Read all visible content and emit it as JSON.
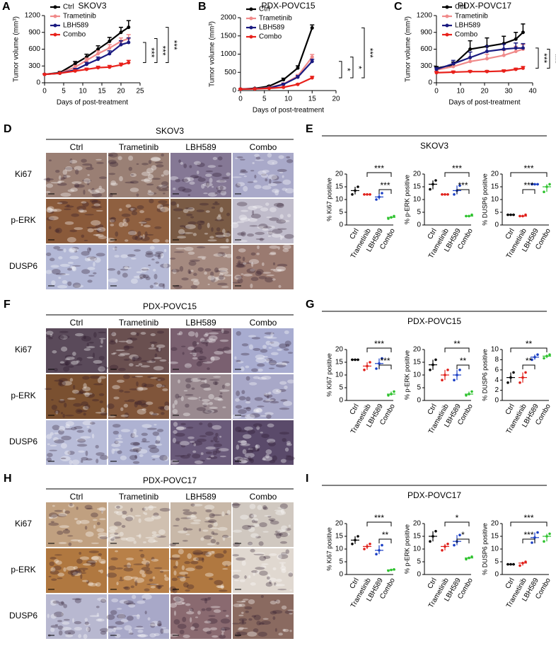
{
  "chart_data": [
    {
      "type": "line",
      "label": "A",
      "title": "SKOV3",
      "x_label": "Days of post-treatment",
      "y_label": "Tumor volume (mm³)",
      "x": [
        0,
        4,
        8,
        11,
        14,
        17,
        20,
        22
      ],
      "xlim": [
        0,
        25
      ],
      "xticks": [
        0,
        5,
        10,
        15,
        20,
        25
      ],
      "ylim": [
        0,
        1200
      ],
      "yticks": [
        0,
        300,
        600,
        900,
        1200
      ],
      "series": [
        {
          "name": "Ctrl",
          "color": "#000000",
          "values": [
            150,
            180,
            340,
            460,
            600,
            740,
            900,
            990
          ],
          "errors": [
            10,
            20,
            40,
            50,
            60,
            70,
            90,
            120
          ]
        },
        {
          "name": "Trametinib",
          "color": "#f08a8a",
          "values": [
            150,
            170,
            280,
            400,
            520,
            620,
            740,
            790
          ],
          "errors": [
            10,
            15,
            30,
            40,
            50,
            60,
            60,
            70
          ]
        },
        {
          "name": "LBH589",
          "color": "#1a1a80",
          "values": [
            150,
            170,
            230,
            330,
            420,
            520,
            680,
            720
          ],
          "errors": [
            10,
            15,
            25,
            35,
            40,
            50,
            70,
            80
          ]
        },
        {
          "name": "Combo",
          "color": "#e8211b",
          "values": [
            150,
            170,
            210,
            240,
            270,
            280,
            320,
            360
          ],
          "errors": [
            10,
            10,
            20,
            20,
            25,
            30,
            30,
            40
          ]
        }
      ],
      "significance": [
        "***",
        "***",
        "***"
      ]
    },
    {
      "type": "line",
      "label": "B",
      "title": "PDX-POVC15",
      "x_label": "Days of post-treatment",
      "y_label": "Tumor volume (mm³)",
      "x": [
        0,
        3,
        6,
        9,
        12,
        15
      ],
      "xlim": [
        0,
        20
      ],
      "xticks": [
        0,
        5,
        10,
        15,
        20
      ],
      "ylim": [
        0,
        2000
      ],
      "yticks": [
        0,
        500,
        1000,
        1500,
        2000
      ],
      "series": [
        {
          "name": "Ctrl",
          "color": "#000000",
          "values": [
            40,
            60,
            120,
            300,
            620,
            1720
          ],
          "errors": [
            10,
            10,
            20,
            40,
            60,
            80
          ]
        },
        {
          "name": "Trametinib",
          "color": "#f08a8a",
          "values": [
            40,
            50,
            80,
            180,
            400,
            920
          ],
          "errors": [
            10,
            10,
            15,
            30,
            40,
            70
          ]
        },
        {
          "name": "LBH589",
          "color": "#1a1a80",
          "values": [
            40,
            50,
            70,
            170,
            370,
            800
          ],
          "errors": [
            10,
            10,
            15,
            30,
            40,
            60
          ]
        },
        {
          "name": "Combo",
          "color": "#e8211b",
          "values": [
            40,
            45,
            60,
            90,
            170,
            350
          ],
          "errors": [
            5,
            5,
            10,
            15,
            20,
            40
          ]
        }
      ],
      "significance": [
        "*",
        "*",
        "***"
      ]
    },
    {
      "type": "line",
      "label": "C",
      "title": "PDX-POVC17",
      "x_label": "Days of post-treatment",
      "y_label": "Tumor volume (mm³)",
      "x": [
        0,
        7,
        14,
        21,
        28,
        33,
        36
      ],
      "xlim": [
        0,
        40
      ],
      "xticks": [
        0,
        10,
        20,
        30,
        40
      ],
      "ylim": [
        0,
        1200
      ],
      "yticks": [
        0,
        300,
        600,
        900,
        1200
      ],
      "series": [
        {
          "name": "Ctrl",
          "color": "#000000",
          "values": [
            260,
            320,
            600,
            650,
            700,
            780,
            900
          ],
          "errors": [
            30,
            50,
            150,
            150,
            130,
            120,
            150
          ]
        },
        {
          "name": "Trametinib",
          "color": "#f08a8a",
          "values": [
            230,
            290,
            380,
            430,
            490,
            560,
            600
          ],
          "errors": [
            30,
            50,
            80,
            80,
            90,
            90,
            80
          ]
        },
        {
          "name": "LBH589",
          "color": "#1a1a80",
          "values": [
            240,
            340,
            450,
            560,
            600,
            620,
            620
          ],
          "errors": [
            30,
            60,
            100,
            100,
            90,
            90,
            80
          ]
        },
        {
          "name": "Combo",
          "color": "#e8211b",
          "values": [
            180,
            190,
            200,
            200,
            210,
            240,
            260
          ],
          "errors": [
            20,
            20,
            20,
            20,
            20,
            20,
            30
          ]
        }
      ],
      "significance": [
        "***",
        "***",
        "***"
      ]
    },
    {
      "type": "dot",
      "label": "E",
      "title": "SKOV3",
      "y_label": "% Ki67 positive",
      "categories": [
        "Ctrl",
        "Trametinib",
        "LBH589",
        "Combo"
      ],
      "colors": [
        "#000000",
        "#e0201b",
        "#1a3fc4",
        "#2ec22e"
      ],
      "values": [
        [
          12,
          13.5,
          15
        ],
        [
          12,
          12,
          12
        ],
        [
          10,
          11,
          12.5
        ],
        [
          2.5,
          3,
          3.5
        ]
      ],
      "ylim": [
        0,
        20
      ],
      "yticks": [
        0,
        5,
        10,
        15,
        20
      ],
      "comparisons": [
        {
          "between": [
            "Trametinib",
            "Combo"
          ],
          "label": "***"
        },
        {
          "between": [
            "LBH589",
            "Combo"
          ],
          "label": "***"
        }
      ]
    },
    {
      "type": "dot",
      "y_label": "% p-ERK positive",
      "categories": [
        "Ctrl",
        "Trametinib",
        "LBH589",
        "Combo"
      ],
      "colors": [
        "#000000",
        "#e0201b",
        "#1a3fc4",
        "#2ec22e"
      ],
      "values": [
        [
          14,
          16,
          17.5
        ],
        [
          12,
          12,
          12
        ],
        [
          12,
          13.5,
          15.5
        ],
        [
          3.5,
          3.5,
          4
        ]
      ],
      "ylim": [
        0,
        20
      ],
      "yticks": [
        0,
        5,
        10,
        15,
        20
      ],
      "comparisons": [
        {
          "between": [
            "Trametinib",
            "Combo"
          ],
          "label": "***"
        },
        {
          "between": [
            "LBH589",
            "Combo"
          ],
          "label": "***"
        }
      ]
    },
    {
      "type": "dot",
      "y_label": "% DUSP6 positive",
      "categories": [
        "Ctrl",
        "Trametinib",
        "LBH589",
        "Combo"
      ],
      "colors": [
        "#000000",
        "#e0201b",
        "#1a3fc4",
        "#2ec22e"
      ],
      "values": [
        [
          4,
          4,
          4
        ],
        [
          3.5,
          3.5,
          4
        ],
        [
          16,
          16,
          16
        ],
        [
          13,
          15,
          16
        ]
      ],
      "ylim": [
        0,
        20
      ],
      "yticks": [
        0,
        5,
        10,
        15,
        20
      ],
      "comparisons": [
        {
          "between": [
            "Ctrl",
            "Combo"
          ],
          "label": "***"
        },
        {
          "between": [
            "Trametinib",
            "LBH589"
          ],
          "label": "***"
        }
      ]
    },
    {
      "type": "dot",
      "label": "G",
      "title": "PDX-POVC15",
      "y_label": "% Ki67 positive",
      "categories": [
        "Ctrl",
        "Trametinib",
        "LBH589",
        "Combo"
      ],
      "colors": [
        "#000000",
        "#e0201b",
        "#1a3fc4",
        "#2ec22e"
      ],
      "values": [
        [
          16,
          16,
          16
        ],
        [
          12,
          13.5,
          15
        ],
        [
          12.5,
          14.5,
          16.5
        ],
        [
          2,
          2.5,
          3.5
        ]
      ],
      "ylim": [
        0,
        20
      ],
      "yticks": [
        0,
        5,
        10,
        15,
        20
      ],
      "comparisons": [
        {
          "between": [
            "Trametinib",
            "Combo"
          ],
          "label": "***"
        },
        {
          "between": [
            "LBH589",
            "Combo"
          ],
          "label": "***"
        }
      ]
    },
    {
      "type": "dot",
      "y_label": "% p-ERK positive",
      "categories": [
        "Ctrl",
        "Trametinib",
        "LBH589",
        "Combo"
      ],
      "colors": [
        "#000000",
        "#e0201b",
        "#1a3fc4",
        "#2ec22e"
      ],
      "values": [
        [
          12,
          14,
          16
        ],
        [
          8,
          10,
          12
        ],
        [
          8,
          10,
          12
        ],
        [
          2,
          2.5,
          3.5
        ]
      ],
      "ylim": [
        0,
        20
      ],
      "yticks": [
        0,
        5,
        10,
        15,
        20
      ],
      "comparisons": [
        {
          "between": [
            "Trametinib",
            "Combo"
          ],
          "label": "**"
        },
        {
          "between": [
            "LBH589",
            "Combo"
          ],
          "label": "**"
        }
      ]
    },
    {
      "type": "dot",
      "y_label": "% DUSP6 positive",
      "categories": [
        "Ctrl",
        "Trametinib",
        "LBH589",
        "Combo"
      ],
      "colors": [
        "#000000",
        "#e0201b",
        "#1a3fc4",
        "#2ec22e"
      ],
      "values": [
        [
          3.5,
          4.5,
          5.5
        ],
        [
          3.5,
          4.5,
          5.5
        ],
        [
          8,
          8.5,
          9
        ],
        [
          8.3,
          8.7,
          9
        ]
      ],
      "ylim": [
        0,
        10
      ],
      "yticks": [
        0,
        2,
        4,
        6,
        8,
        10
      ],
      "comparisons": [
        {
          "between": [
            "Ctrl",
            "Combo"
          ],
          "label": "**"
        },
        {
          "between": [
            "Trametinib",
            "LBH589"
          ],
          "label": "**"
        }
      ]
    },
    {
      "type": "dot",
      "label": "I",
      "title": "PDX-POVC17",
      "y_label": "% Ki67 positive",
      "categories": [
        "Ctrl",
        "Trametinib",
        "LBH589",
        "Combo"
      ],
      "colors": [
        "#000000",
        "#e0201b",
        "#1a3fc4",
        "#2ec22e"
      ],
      "values": [
        [
          12,
          13.5,
          15
        ],
        [
          10,
          11,
          12
        ],
        [
          8,
          9.5,
          11.5
        ],
        [
          1.5,
          1.8,
          2
        ]
      ],
      "ylim": [
        0,
        20
      ],
      "yticks": [
        0,
        5,
        10,
        15,
        20
      ],
      "comparisons": [
        {
          "between": [
            "Trametinib",
            "Combo"
          ],
          "label": "***"
        },
        {
          "between": [
            "LBH589",
            "Combo"
          ],
          "label": "**"
        }
      ]
    },
    {
      "type": "dot",
      "y_label": "% p-ERK positive",
      "categories": [
        "Ctrl",
        "Trametinib",
        "LBH589",
        "Combo"
      ],
      "colors": [
        "#000000",
        "#e0201b",
        "#1a3fc4",
        "#2ec22e"
      ],
      "values": [
        [
          13,
          15,
          17
        ],
        [
          9.5,
          11,
          12
        ],
        [
          11.5,
          13,
          15.5
        ],
        [
          6,
          6.5,
          7
        ]
      ],
      "ylim": [
        0,
        20
      ],
      "yticks": [
        0,
        5,
        10,
        15,
        20
      ],
      "comparisons": [
        {
          "between": [
            "Trametinib",
            "Combo"
          ],
          "label": "*"
        },
        {
          "between": [
            "LBH589",
            "Combo"
          ],
          "label": "*"
        }
      ]
    },
    {
      "type": "dot",
      "y_label": "% DUSP6 positive",
      "categories": [
        "Ctrl",
        "Trametinib",
        "LBH589",
        "Combo"
      ],
      "colors": [
        "#000000",
        "#e0201b",
        "#1a3fc4",
        "#2ec22e"
      ],
      "values": [
        [
          4,
          4,
          4
        ],
        [
          3.5,
          4.5,
          5
        ],
        [
          12.5,
          14.5,
          16.5
        ],
        [
          13,
          15,
          16
        ]
      ],
      "ylim": [
        0,
        20
      ],
      "yticks": [
        0,
        5,
        10,
        15,
        20
      ],
      "comparisons": [
        {
          "between": [
            "Ctrl",
            "Combo"
          ],
          "label": "***"
        },
        {
          "between": [
            "Trametinib",
            "LBH589"
          ],
          "label": "***"
        }
      ]
    }
  ],
  "image_panels": [
    {
      "label": "D",
      "title": "SKOV3",
      "columns": [
        "Ctrl",
        "Trametinib",
        "LBH589",
        "Combo"
      ],
      "rows": [
        "Ki67",
        "p-ERK",
        "DUSP6"
      ]
    },
    {
      "label": "F",
      "title": "PDX-POVC15",
      "columns": [
        "Ctrl",
        "Trametinib",
        "LBH589",
        "Combo"
      ],
      "rows": [
        "Ki67",
        "p-ERK",
        "DUSP6"
      ]
    },
    {
      "label": "H",
      "title": "PDX-POVC17",
      "columns": [
        "Ctrl",
        "Trametinib",
        "LBH589",
        "Combo"
      ],
      "rows": [
        "Ki67",
        "p-ERK",
        "DUSP6"
      ]
    }
  ]
}
